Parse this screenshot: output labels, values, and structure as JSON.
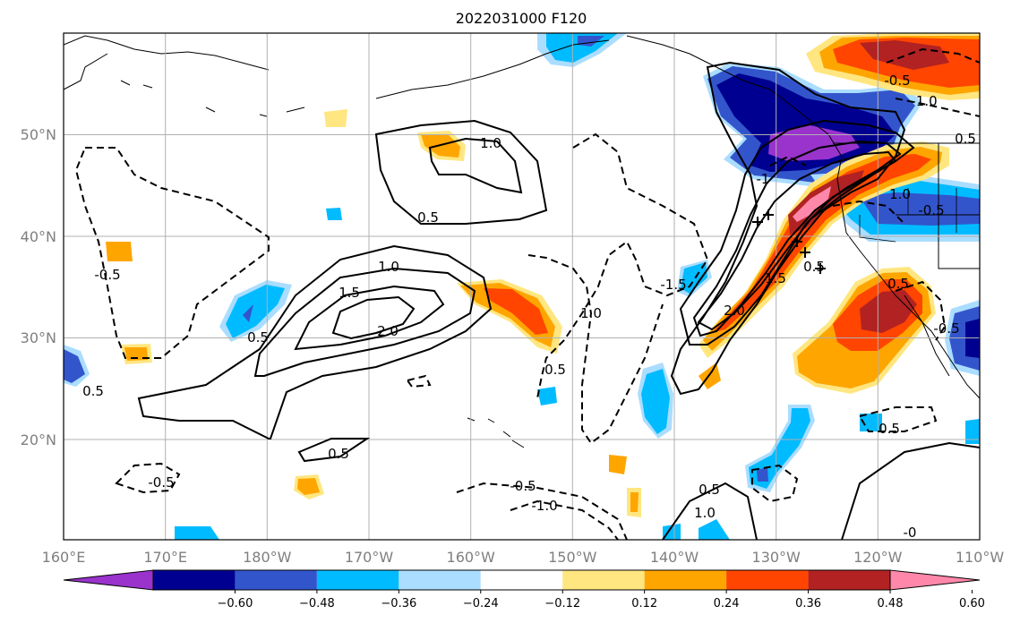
{
  "title": "2022031000 F120",
  "lon_ticks": [
    "160°E",
    "170°E",
    "180°W",
    "170°W",
    "160°W",
    "150°W",
    "140°W",
    "130°W",
    "120°W",
    "110°W"
  ],
  "lat_ticks": [
    "20°N",
    "30°N",
    "40°N",
    "50°N"
  ],
  "colorbar": {
    "ticks": [
      "−0.60",
      "−0.48",
      "−0.36",
      "−0.24",
      "−0.12",
      "0.12",
      "0.24",
      "0.36",
      "0.48",
      "0.60"
    ],
    "colors": [
      "#9933cc",
      "#000090",
      "#3355cc",
      "#00bbff",
      "#aaddff",
      "#ffffff",
      "#ffe680",
      "#ffa500",
      "#ff4500",
      "#b22222",
      "#ff88aa"
    ]
  },
  "contour_labels": [
    "1.0",
    "0.5",
    "1.0",
    "1.5",
    "2.0",
    "0.5",
    "0.5",
    "-0.5",
    "0.5",
    "-0.5",
    "1.0",
    "0.5",
    "-1.5",
    "2.0",
    "1.5",
    "0.5",
    "-1",
    "0.5",
    "-1.0",
    "-0.5",
    "1.0",
    "0.5",
    "-0.5",
    "-1.0",
    "0.5",
    "1.0",
    "-0.5",
    "0.5",
    "-0.5",
    "-0"
  ],
  "grid": true
}
